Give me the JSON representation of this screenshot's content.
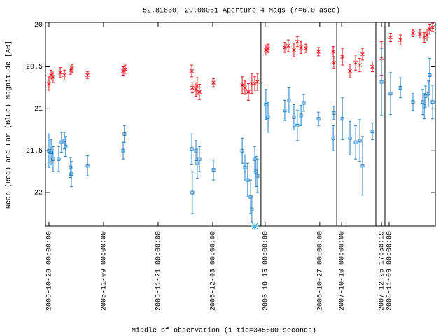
{
  "chart_data": {
    "type": "scatter",
    "title": "52.81830,-29.08061   Aperture 4 Mags (r=6.0 asec)",
    "ylabel": "Near (Red) and Far (Blue) Magnitude [AB]",
    "xlabel": "Middle of observation (1 tic=345600 seconds)",
    "xlim": [
      -0.19,
      21.23
    ],
    "ylim": [
      22.4,
      19.97
    ],
    "yticks": [
      20,
      20.5,
      21,
      21.5,
      22
    ],
    "xticks": [
      {
        "value": 0,
        "label": "2005-10-28 00:00:00"
      },
      {
        "value": 3,
        "label": "2005-11-09 00:00:00"
      },
      {
        "value": 6,
        "label": "2005-11-21 00:00:00"
      },
      {
        "value": 9,
        "label": "2005-12-03 00:00:00"
      },
      {
        "value": 11.88,
        "label": "2006-10-15 00:00:00"
      },
      {
        "value": 14.88,
        "label": "2006-10-27 00:00:00"
      },
      {
        "value": 16.08,
        "label": "2007-10-10 00:00:00"
      },
      {
        "value": 18.27,
        "label": "2007-12-26 17:58:19"
      },
      {
        "value": 18.69,
        "label": "2008-11-09 00:00:00"
      }
    ],
    "segment_breaks": [
      11.65,
      15.81,
      17.96,
      18.46
    ],
    "limit_marker": {
      "x": 11.31,
      "y": 22.4,
      "color": "#2a9fd8"
    },
    "series": [
      {
        "name": "Near (Red)",
        "color": "#e8161b",
        "marker": "star",
        "x": [
          0,
          0.12,
          0.23,
          0.62,
          0.85,
          1.19,
          1.27,
          2.12,
          4.08,
          4.19,
          7.85,
          7.88,
          8.08,
          8.15,
          8.27,
          9.04,
          10.62,
          10.77,
          10.96,
          11.15,
          11.31,
          11.46,
          11.92,
          12.04,
          12.96,
          13.15,
          13.46,
          13.65,
          13.85,
          14.12,
          14.81,
          15.62,
          15.65,
          16.12,
          16.54,
          16.85,
          17.08,
          17.23,
          17.77,
          18.27,
          18.77,
          19.31,
          20,
          20.38,
          20.62,
          20.77,
          20.92,
          21.08
        ],
        "values": [
          20.7,
          20.6,
          20.62,
          20.57,
          20.6,
          20.54,
          20.52,
          20.6,
          20.55,
          20.53,
          20.55,
          20.75,
          20.77,
          20.73,
          20.8,
          20.69,
          20.72,
          20.75,
          20.8,
          20.7,
          20.7,
          20.68,
          20.3,
          20.28,
          20.27,
          20.25,
          20.3,
          20.2,
          20.27,
          20.28,
          20.32,
          20.32,
          20.45,
          20.38,
          20.55,
          20.45,
          20.48,
          20.35,
          20.5,
          20.4,
          20.15,
          20.18,
          20.1,
          20.11,
          20.15,
          20.12,
          20.05,
          20.03
        ],
        "errors": [
          0.08,
          0.06,
          0.07,
          0.06,
          0.06,
          0.05,
          0.05,
          0.04,
          0.05,
          0.05,
          0.07,
          0.06,
          0.08,
          0.1,
          0.09,
          0.05,
          0.1,
          0.08,
          0.1,
          0.12,
          0.08,
          0.1,
          0.06,
          0.05,
          0.06,
          0.07,
          0.08,
          0.06,
          0.07,
          0.05,
          0.05,
          0.06,
          0.07,
          0.1,
          0.08,
          0.09,
          0.08,
          0.07,
          0.06,
          0.2,
          0.05,
          0.06,
          0.04,
          0.05,
          0.06,
          0.07,
          0.06,
          0.05
        ]
      },
      {
        "name": "Far (Blue)",
        "color": "#1f7fc4",
        "marker": "square",
        "x": [
          0,
          0.12,
          0.23,
          0.54,
          0.69,
          0.85,
          0.92,
          1.19,
          1.23,
          2.12,
          4.08,
          4.15,
          7.85,
          7.88,
          8.08,
          8.15,
          8.27,
          9.04,
          10.62,
          10.77,
          10.92,
          11.08,
          11.15,
          11.31,
          11.38,
          11.46,
          11.92,
          12.04,
          12.96,
          13.19,
          13.46,
          13.65,
          13.85,
          14,
          14.81,
          15.62,
          15.65,
          16.12,
          16.54,
          16.85,
          17.08,
          17.23,
          17.77,
          18.27,
          18.77,
          19.31,
          20,
          20.54,
          20.62,
          20.69,
          20.85,
          20.92,
          21.08
        ],
        "values": [
          21.5,
          21.52,
          21.6,
          21.6,
          21.4,
          21.38,
          21.45,
          21.7,
          21.78,
          21.68,
          21.5,
          21.3,
          21.48,
          22,
          21.5,
          21.65,
          21.6,
          21.73,
          21.5,
          21.7,
          21.85,
          22.05,
          22.2,
          21.6,
          21.75,
          21.8,
          20.95,
          21.1,
          21.02,
          20.9,
          21.1,
          21.2,
          21.08,
          20.93,
          21.12,
          21.35,
          21.05,
          21.12,
          21.35,
          21.4,
          21.38,
          21.68,
          21.27,
          20.68,
          20.82,
          20.75,
          20.92,
          20.92,
          20.97,
          20.85,
          20.82,
          20.6,
          20.92
        ],
        "errors": [
          0.2,
          0.15,
          0.15,
          0.15,
          0.12,
          0.1,
          0.12,
          0.12,
          0.15,
          0.12,
          0.1,
          0.1,
          0.18,
          0.25,
          0.12,
          0.18,
          0.15,
          0.12,
          0.15,
          0.15,
          0.2,
          0.2,
          0.15,
          0.15,
          0.18,
          0.2,
          0.18,
          0.18,
          0.12,
          0.15,
          0.15,
          0.18,
          0.12,
          0.1,
          0.08,
          0.15,
          0.08,
          0.25,
          0.2,
          0.2,
          0.25,
          0.35,
          0.1,
          0.4,
          0.25,
          0.12,
          0.1,
          0.15,
          0.15,
          0.12,
          0.15,
          0.2,
          0.2
        ]
      }
    ]
  }
}
